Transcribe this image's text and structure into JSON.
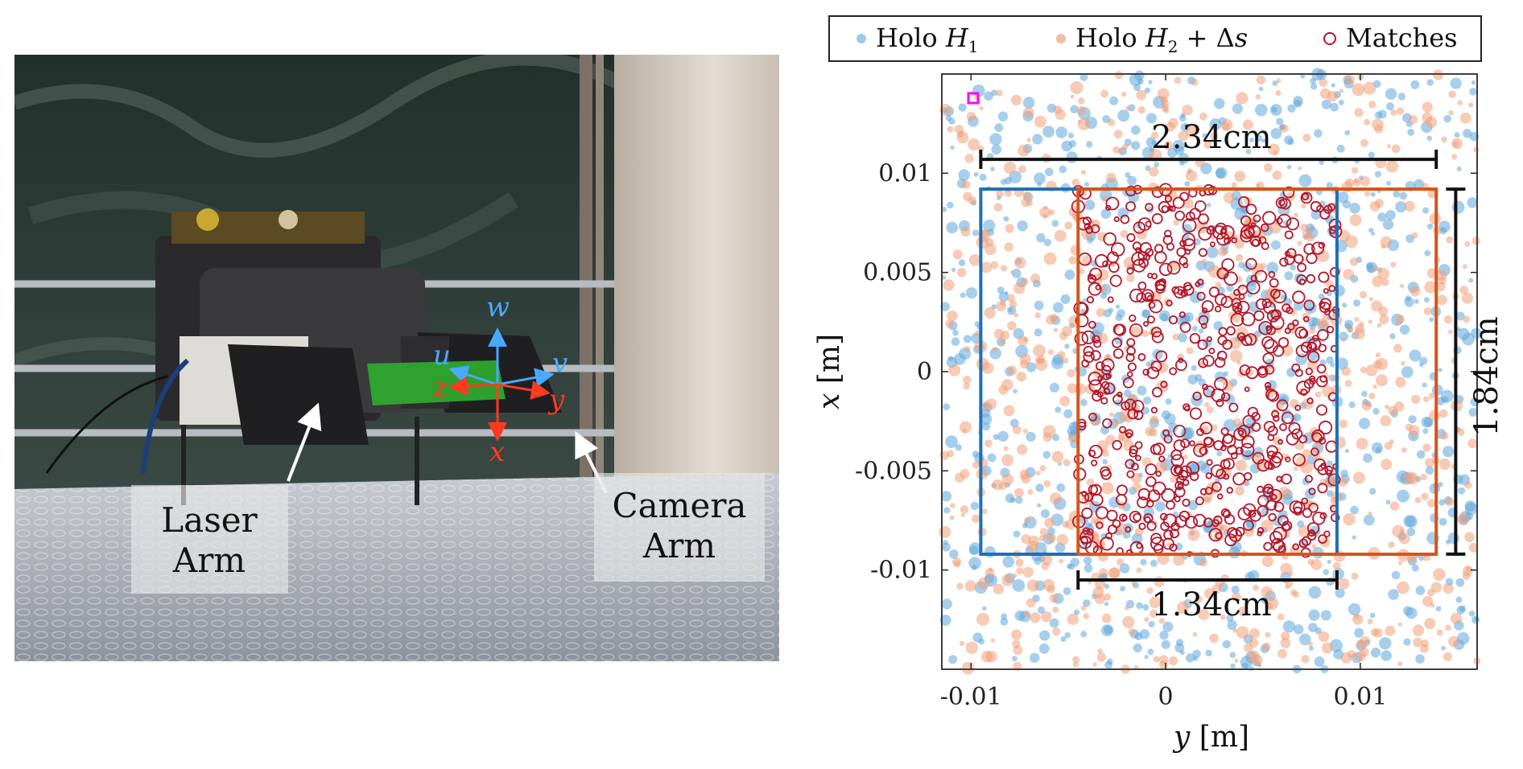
{
  "photo": {
    "labels": {
      "laser_arm": [
        "Laser",
        "Arm"
      ],
      "camera_arm": [
        "Camera",
        "Arm"
      ]
    },
    "axes_blue": {
      "u": "u",
      "v": "v",
      "w": "w"
    },
    "axes_red": {
      "x": "x",
      "y": "y",
      "z": "z"
    },
    "colors": {
      "blue_axis": "#4aa8ff",
      "red_axis": "#ff3b1f",
      "beam": "#2fae2f"
    }
  },
  "legend": {
    "holo1": {
      "text": "Holo ",
      "var": "H",
      "sub": "1"
    },
    "holo2": {
      "text": "Holo ",
      "var": "H",
      "sub": "2",
      "suffix": " + Δ",
      "suffix_var": "s"
    },
    "matches": {
      "text": "Matches"
    }
  },
  "plot": {
    "xlabel_var": "y",
    "xlabel_unit": " [m]",
    "ylabel_var": "x",
    "ylabel_unit": " [m]",
    "xticks": [
      "-0.01",
      "0",
      "0.01"
    ],
    "yticks": [
      "0.01",
      "0.005",
      "0",
      "-0.005",
      "-0.01"
    ],
    "dim_top": "2.34cm",
    "dim_bottom": "1.34cm",
    "dim_right": "1.84cm",
    "colors": {
      "holo1": "#5fa8dc",
      "holo2": "#f0a07a",
      "matches": "#b2182b",
      "box1": "#1f6fb5",
      "box2": "#d95319",
      "marker": "#ff00ff"
    }
  },
  "chart_data": {
    "type": "scatter",
    "title": "",
    "xlabel": "y [m]",
    "ylabel": "x [m]",
    "xlim": [
      -0.0115,
      0.016
    ],
    "ylim": [
      -0.015,
      0.015
    ],
    "xticks": [
      -0.01,
      0,
      0.01
    ],
    "yticks": [
      0.01,
      0.005,
      0,
      -0.005,
      -0.01
    ],
    "legend_position": "top",
    "series": [
      {
        "name": "Holo H1",
        "x_range": [
          -0.0115,
          0.016
        ],
        "y_range": [
          -0.015,
          0.015
        ],
        "approx_count": 800
      },
      {
        "name": "Holo H2 + Δs",
        "x_range": [
          -0.0115,
          0.016
        ],
        "y_range": [
          -0.015,
          0.015
        ],
        "approx_count": 800
      },
      {
        "name": "Matches",
        "x_range": [
          -0.0045,
          0.0088
        ],
        "y_range": [
          -0.0092,
          0.0092
        ],
        "approx_count": 600
      }
    ],
    "boxes": [
      {
        "color": "blue",
        "x": [
          -0.0095,
          0.0088
        ],
        "y": [
          -0.0092,
          0.0092
        ]
      },
      {
        "color": "orange",
        "x": [
          -0.0045,
          0.0139
        ],
        "y": [
          -0.0092,
          0.0092
        ]
      }
    ],
    "annotations": [
      {
        "text": "2.34cm",
        "x": [
          -0.0095,
          0.0139
        ],
        "y": 0.0107
      },
      {
        "text": "1.34cm",
        "x": [
          -0.0045,
          0.0088
        ],
        "y": -0.0105
      },
      {
        "text": "1.84cm",
        "x": 0.0149,
        "y": [
          -0.0092,
          0.0092
        ]
      }
    ]
  }
}
